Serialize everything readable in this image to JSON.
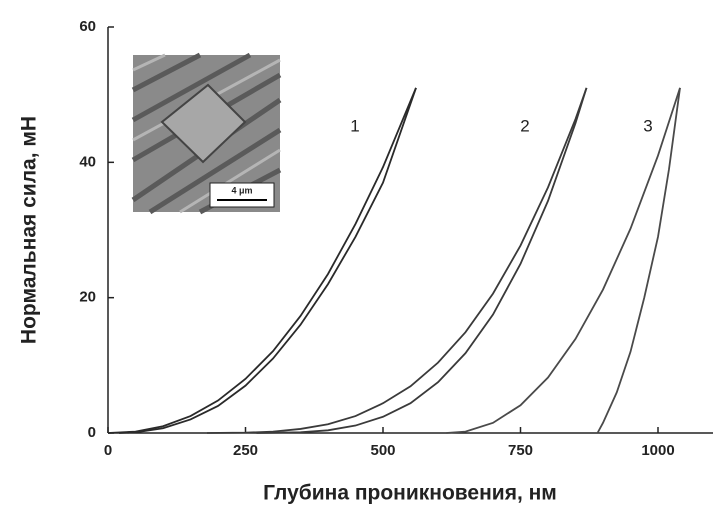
{
  "chart_data": {
    "type": "line",
    "xlabel": "Глубина проникновения, нм",
    "ylabel": "Нормальная сила, мН",
    "xlim": [
      0,
      1100
    ],
    "ylim": [
      0,
      60
    ],
    "xticks": [
      0,
      250,
      500,
      750,
      1000
    ],
    "yticks": [
      0,
      20,
      40,
      60
    ],
    "inset_label": "4 μm",
    "series": [
      {
        "name": "1",
        "color": "#2a2a2a",
        "x": [
          0,
          50,
          100,
          150,
          200,
          250,
          300,
          350,
          400,
          450,
          500,
          560,
          null,
          560,
          500,
          450,
          400,
          350,
          300,
          250,
          200,
          150,
          100,
          50,
          20
        ],
        "values": [
          0,
          0.2,
          1,
          2.5,
          4.8,
          8,
          12.1,
          17.3,
          23.5,
          30.9,
          39.3,
          51,
          null,
          51,
          37,
          29,
          22,
          16,
          11,
          7,
          4,
          2,
          0.7,
          0.1,
          0
        ]
      },
      {
        "name": "2",
        "color": "#3a3a3a",
        "x": [
          180,
          250,
          300,
          350,
          400,
          450,
          500,
          550,
          600,
          650,
          700,
          750,
          800,
          850,
          870,
          null,
          870,
          850,
          800,
          750,
          700,
          650,
          600,
          550,
          500,
          450,
          400,
          350,
          270
        ],
        "values": [
          0,
          0.05,
          0.2,
          0.6,
          1.3,
          2.5,
          4.4,
          6.9,
          10.4,
          14.9,
          20.6,
          27.7,
          36.3,
          46.4,
          51,
          null,
          51,
          45.8,
          34.3,
          25,
          17.5,
          11.8,
          7.5,
          4.4,
          2.4,
          1.1,
          0.4,
          0.1,
          0
        ]
      },
      {
        "name": "3",
        "color": "#4a4a4a",
        "x": [
          615,
          650,
          700,
          750,
          800,
          850,
          900,
          950,
          1000,
          1040,
          null,
          1040,
          1020,
          1000,
          975,
          950,
          925,
          900,
          890
        ],
        "values": [
          0,
          0.2,
          1.5,
          4.1,
          8.2,
          13.9,
          21.2,
          30.2,
          41,
          51,
          null,
          51,
          39,
          29,
          20,
          12,
          6,
          1.5,
          0
        ]
      }
    ]
  }
}
